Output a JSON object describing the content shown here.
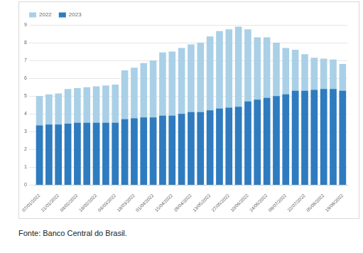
{
  "chart_data": {
    "type": "bar",
    "categories": [
      "07/01/2022",
      null,
      "21/01/2022",
      null,
      "04/02/2022",
      null,
      "18/02/2022",
      null,
      "04/03/2022",
      null,
      "18/03/2022",
      null,
      "01/04/2022",
      null,
      "15/04/2022",
      null,
      "29/04/2022",
      null,
      "13/05/2022",
      null,
      "27/05/2022",
      null,
      "10/06/2022",
      null,
      "24/06/2022",
      null,
      "08/07/2022",
      null,
      "22/07/2022",
      null,
      "05/08/2022",
      null,
      "19/08/2022"
    ],
    "series": [
      {
        "name": "2022",
        "color": "#a9d0e6",
        "values": [
          5.0,
          5.1,
          5.15,
          5.4,
          5.45,
          5.5,
          5.55,
          5.6,
          5.65,
          6.45,
          6.6,
          6.85,
          7.0,
          7.45,
          7.5,
          7.7,
          7.9,
          8.0,
          8.35,
          8.65,
          8.75,
          8.9,
          8.75,
          8.3,
          8.3,
          8.0,
          7.7,
          7.6,
          7.35,
          7.15,
          7.1,
          7.05,
          6.8
        ]
      },
      {
        "name": "2023",
        "color": "#2f7bbf",
        "values": [
          3.35,
          3.4,
          3.4,
          3.45,
          3.5,
          3.5,
          3.5,
          3.5,
          3.5,
          3.7,
          3.75,
          3.8,
          3.8,
          3.9,
          3.9,
          4.0,
          4.1,
          4.1,
          4.2,
          4.3,
          4.35,
          4.4,
          4.7,
          4.8,
          4.9,
          5.0,
          5.1,
          5.3,
          5.3,
          5.35,
          5.4,
          5.4,
          5.3
        ]
      }
    ],
    "ylim": [
      0,
      9
    ],
    "yticks": [
      0,
      1,
      2,
      3,
      4,
      5,
      6,
      7,
      8,
      9
    ],
    "grid": true,
    "legend": "top-left",
    "annotations": [
      "Fonte: Banco Central do Brasil."
    ]
  }
}
